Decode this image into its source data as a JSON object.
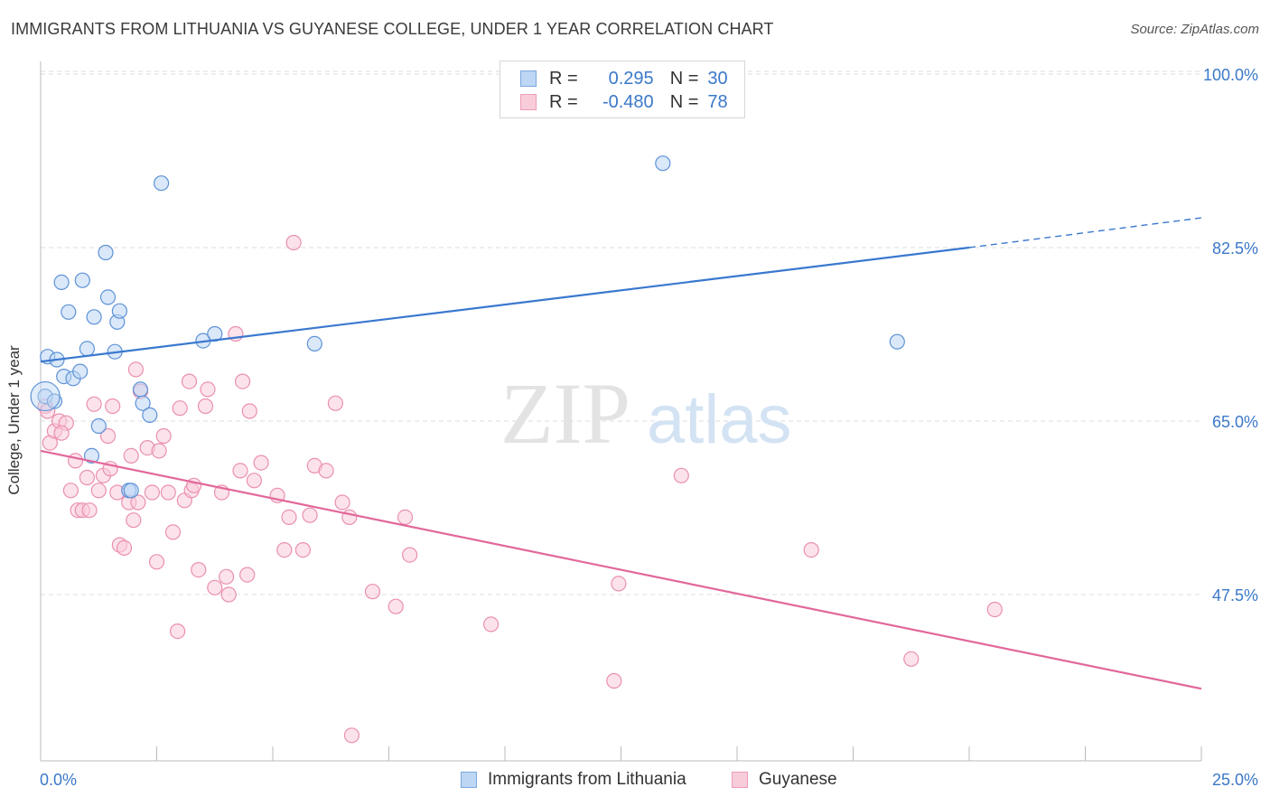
{
  "title": "IMMIGRANTS FROM LITHUANIA VS GUYANESE COLLEGE, UNDER 1 YEAR CORRELATION CHART",
  "source": "Source: ZipAtlas.com",
  "watermark": {
    "zip": "ZIP",
    "atlas": "atlas"
  },
  "legend": {
    "rows": [
      {
        "r_label": "R =",
        "r_value": "0.295",
        "n_label": "N =",
        "n_value": "30",
        "color": "#a9c9f0"
      },
      {
        "r_label": "R =",
        "r_value": "-0.480",
        "n_label": "N =",
        "n_value": "78",
        "color": "#f4b5c8"
      }
    ]
  },
  "bottom_legend": [
    {
      "label": "Immigrants from Lithuania",
      "color": "#a9c9f0"
    },
    {
      "label": "Guyanese",
      "color": "#f4b5c8"
    }
  ],
  "colors": {
    "blue": "#3a78cf",
    "pink": "#e2679a",
    "blue_fill": "#a9c9f0",
    "pink_fill": "#f4b5c8",
    "tick_text": "#3b78c9"
  },
  "chart_data": {
    "type": "scatter",
    "title": "IMMIGRANTS FROM LITHUANIA VS GUYANESE COLLEGE, UNDER 1 YEAR CORRELATION CHART",
    "xlabel": "",
    "ylabel": "College, Under 1 year",
    "xlim": [
      0,
      25
    ],
    "ylim": [
      32.5,
      103
    ],
    "x_tick_labels": [
      "0.0%",
      "25.0%"
    ],
    "y_ticks": [
      47.5,
      65.0,
      82.5,
      100.0
    ],
    "y_tick_labels": [
      "47.5%",
      "65.0%",
      "82.5%",
      "100.0%"
    ],
    "grid": true,
    "legend_position": "top-center",
    "series": [
      {
        "name": "Immigrants from Lithuania",
        "color": "#a9c9f0",
        "trend": {
          "x0": 0,
          "y0": 71.0,
          "x1": 20,
          "y1": 82.5,
          "dashed_to": 25,
          "dashed_y": 85.5
        },
        "points": [
          [
            0.1,
            67.5
          ],
          [
            0.15,
            71.5
          ],
          [
            0.35,
            71.2
          ],
          [
            0.5,
            69.5
          ],
          [
            0.7,
            69.3
          ],
          [
            0.85,
            70.0
          ],
          [
            0.45,
            79.0
          ],
          [
            0.6,
            76.0
          ],
          [
            0.9,
            79.2
          ],
          [
            1.0,
            72.3
          ],
          [
            1.15,
            75.5
          ],
          [
            1.25,
            64.5
          ],
          [
            1.4,
            82.0
          ],
          [
            1.45,
            77.5
          ],
          [
            1.6,
            72.0
          ],
          [
            1.65,
            75.0
          ],
          [
            1.7,
            76.1
          ],
          [
            1.9,
            58.0
          ],
          [
            1.95,
            58.0
          ],
          [
            2.15,
            68.2
          ],
          [
            2.2,
            66.8
          ],
          [
            2.35,
            65.6
          ],
          [
            2.6,
            89.0
          ],
          [
            3.5,
            73.1
          ],
          [
            3.75,
            73.8
          ],
          [
            5.9,
            72.8
          ],
          [
            13.4,
            91.0
          ],
          [
            18.45,
            73.0
          ],
          [
            1.1,
            61.5
          ],
          [
            0.3,
            67.0
          ]
        ]
      },
      {
        "name": "Guyanese",
        "color": "#f4b5c8",
        "trend": {
          "x0": 0,
          "y0": 62.0,
          "x1": 25,
          "y1": 38.0
        },
        "points": [
          [
            0.1,
            66.5
          ],
          [
            0.2,
            62.8
          ],
          [
            0.3,
            64.0
          ],
          [
            0.4,
            65.0
          ],
          [
            0.55,
            64.8
          ],
          [
            0.65,
            58.0
          ],
          [
            0.75,
            61.0
          ],
          [
            0.8,
            56.0
          ],
          [
            0.9,
            56.0
          ],
          [
            1.0,
            59.3
          ],
          [
            1.05,
            56.0
          ],
          [
            1.15,
            66.7
          ],
          [
            1.25,
            58.0
          ],
          [
            1.35,
            59.5
          ],
          [
            1.45,
            63.5
          ],
          [
            1.5,
            60.2
          ],
          [
            1.55,
            66.5
          ],
          [
            1.65,
            57.8
          ],
          [
            1.7,
            52.5
          ],
          [
            1.8,
            52.2
          ],
          [
            1.9,
            56.8
          ],
          [
            1.95,
            61.5
          ],
          [
            2.05,
            70.2
          ],
          [
            2.1,
            56.8
          ],
          [
            2.15,
            68.0
          ],
          [
            2.3,
            62.3
          ],
          [
            2.4,
            57.8
          ],
          [
            2.5,
            50.8
          ],
          [
            2.55,
            62.0
          ],
          [
            2.65,
            63.5
          ],
          [
            2.75,
            57.8
          ],
          [
            2.85,
            53.8
          ],
          [
            2.95,
            43.8
          ],
          [
            3.0,
            66.3
          ],
          [
            3.1,
            57.0
          ],
          [
            3.2,
            69.0
          ],
          [
            3.25,
            58.0
          ],
          [
            3.3,
            58.5
          ],
          [
            3.4,
            50.0
          ],
          [
            3.55,
            66.5
          ],
          [
            3.6,
            68.2
          ],
          [
            3.75,
            48.2
          ],
          [
            3.9,
            57.8
          ],
          [
            4.0,
            49.3
          ],
          [
            4.05,
            47.5
          ],
          [
            4.2,
            73.8
          ],
          [
            4.3,
            60.0
          ],
          [
            4.35,
            69.0
          ],
          [
            4.45,
            49.5
          ],
          [
            4.5,
            66.0
          ],
          [
            4.6,
            59.0
          ],
          [
            4.75,
            60.8
          ],
          [
            5.1,
            57.5
          ],
          [
            5.25,
            52.0
          ],
          [
            5.35,
            55.3
          ],
          [
            5.45,
            83.0
          ],
          [
            5.65,
            52.0
          ],
          [
            5.8,
            55.5
          ],
          [
            5.9,
            60.5
          ],
          [
            6.15,
            60.0
          ],
          [
            6.35,
            66.8
          ],
          [
            6.5,
            56.8
          ],
          [
            6.65,
            55.3
          ],
          [
            7.15,
            47.8
          ],
          [
            7.65,
            46.3
          ],
          [
            7.85,
            55.3
          ],
          [
            7.95,
            51.5
          ],
          [
            9.7,
            44.5
          ],
          [
            12.35,
            38.8
          ],
          [
            12.45,
            48.6
          ],
          [
            13.8,
            59.5
          ],
          [
            16.6,
            52.0
          ],
          [
            18.75,
            41.0
          ],
          [
            20.55,
            46.0
          ],
          [
            6.7,
            33.3
          ],
          [
            0.15,
            66.0
          ],
          [
            0.45,
            63.8
          ],
          [
            2.0,
            55.0
          ]
        ]
      }
    ]
  }
}
